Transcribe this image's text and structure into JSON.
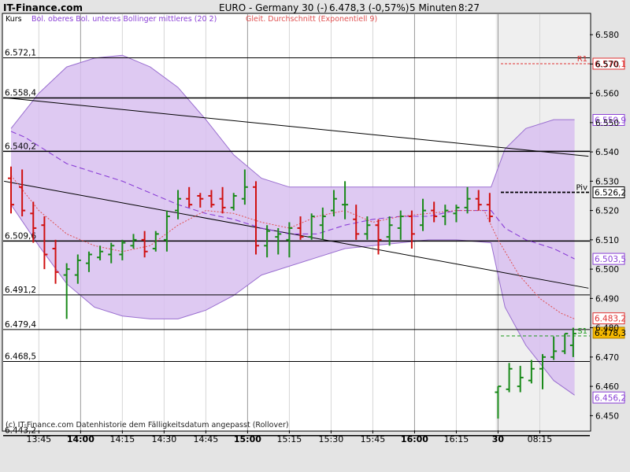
{
  "header": {
    "brand": "IT-Finance.com",
    "instrument": "EURO - Germany 30 (-)",
    "quote": "6.478,3 (-0,57%)",
    "interval": "5 Minuten",
    "time": "8:27"
  },
  "legend": {
    "kurs": "Kurs",
    "bollinger": "Bol. oberes Bol. unteres Bollinger mittleres (20 2)",
    "ema": "Gleit. Durchschnitt (Exponentiell 9)"
  },
  "footer_note": "(c) IT-Finance.com Datenhistorie dem Fälligkeitsdatum angepasst (Rollover)",
  "colors": {
    "band_fill": "#d8bff0",
    "band_edge": "#9a6fd0",
    "middle": "#8a3fd6",
    "ema": "#e05050",
    "up": "#1a8a1a",
    "down": "#d01010",
    "bg": "#ffffff",
    "future_bg": "#f0f0f0",
    "last_price_box": "#f5b800"
  },
  "chart_data": {
    "type": "candlestick",
    "y_min": 6.445,
    "y_max": 6.587,
    "y_ticks": [
      "6.580",
      "6.570",
      "6.560",
      "6.550",
      "6.540",
      "6.530",
      "6.520",
      "6.510",
      "6.500",
      "6.490",
      "6.480",
      "6.470",
      "6.460",
      "6.450"
    ],
    "y_tick_values": [
      6.58,
      6.57,
      6.56,
      6.55,
      6.54,
      6.53,
      6.52,
      6.51,
      6.5,
      6.49,
      6.48,
      6.47,
      6.46,
      6.45
    ],
    "time_start": "13:35",
    "time_labels": [
      {
        "label": "13:45",
        "t": 2,
        "bold": false
      },
      {
        "label": "14:00",
        "t": 5,
        "bold": true
      },
      {
        "label": "14:15",
        "t": 8,
        "bold": false
      },
      {
        "label": "14:30",
        "t": 11,
        "bold": false
      },
      {
        "label": "14:45",
        "t": 14,
        "bold": false
      },
      {
        "label": "15:00",
        "t": 17,
        "bold": true
      },
      {
        "label": "15:15",
        "t": 20,
        "bold": false
      },
      {
        "label": "15:30",
        "t": 23,
        "bold": false
      },
      {
        "label": "15:45",
        "t": 26,
        "bold": false
      },
      {
        "label": "16:00",
        "t": 29,
        "bold": true
      },
      {
        "label": "16:15",
        "t": 32,
        "bold": false
      },
      {
        "label": "30",
        "t": 35,
        "bold": true
      },
      {
        "label": "08:15",
        "t": 38,
        "bold": false
      }
    ],
    "session_break_t": 34.5,
    "hlines": [
      {
        "label": "6.572,1",
        "value": 6.5721,
        "width": 1
      },
      {
        "label": "6.558,4",
        "value": 6.5584,
        "width": 1.5
      },
      {
        "label": "6.540,2",
        "value": 6.5402,
        "width": 1.5
      },
      {
        "label": "6.509,6",
        "value": 6.5096,
        "width": 1.5
      },
      {
        "label": "6.491,2",
        "value": 6.4912,
        "width": 1
      },
      {
        "label": "6.479,4",
        "value": 6.4794,
        "width": 1
      },
      {
        "label": "6.468,5",
        "value": 6.4685,
        "width": 1
      },
      {
        "label": "6.443,2",
        "value": 6.4432,
        "width": 1.5
      }
    ],
    "levels": [
      {
        "name": "R1",
        "value": 6.5701,
        "label": "6.570,1",
        "style": "red-dash"
      },
      {
        "name": "",
        "value": 6.5509,
        "label": "6.550,9",
        "style": "box-purple"
      },
      {
        "name": "Piv",
        "value": 6.5262,
        "label": "6.526,2",
        "style": "black-dash"
      },
      {
        "name": "",
        "value": 6.5035,
        "label": "6.503,5",
        "style": "box-purple"
      },
      {
        "name": "",
        "value": 6.4832,
        "label": "6.483,2",
        "style": "box-red"
      },
      {
        "name": "S1",
        "value": 6.4772,
        "label": "",
        "style": "green-dash"
      },
      {
        "name": "",
        "value": 6.4783,
        "label": "6.478,3",
        "style": "box-last"
      },
      {
        "name": "",
        "value": 6.4562,
        "label": "6.456,2",
        "style": "box-purple"
      }
    ],
    "trendlines": [
      {
        "from": [
          -0.5,
          6.5585
        ],
        "to": [
          41.5,
          6.5385
        ]
      },
      {
        "from": [
          -0.5,
          6.53
        ],
        "to": [
          41.5,
          6.4935
        ]
      }
    ],
    "bars": [
      {
        "t": 0,
        "open": 6.531,
        "high": 6.535,
        "low": 6.519,
        "close": 6.522
      },
      {
        "t": 0.8,
        "open": 6.528,
        "high": 6.534,
        "low": 6.518,
        "close": 6.52
      },
      {
        "t": 1.6,
        "open": 6.519,
        "high": 6.523,
        "low": 6.509,
        "close": 6.514
      },
      {
        "t": 2.4,
        "open": 6.515,
        "high": 6.518,
        "low": 6.5,
        "close": 6.505
      },
      {
        "t": 3.2,
        "open": 6.507,
        "high": 6.51,
        "low": 6.495,
        "close": 6.499
      },
      {
        "t": 4,
        "open": 6.498,
        "high": 6.502,
        "low": 6.483,
        "close": 6.5
      },
      {
        "t": 4.8,
        "open": 6.498,
        "high": 6.505,
        "low": 6.495,
        "close": 6.503
      },
      {
        "t": 5.6,
        "open": 6.502,
        "high": 6.506,
        "low": 6.499,
        "close": 6.505
      },
      {
        "t": 6.4,
        "open": 6.504,
        "high": 6.508,
        "low": 6.503,
        "close": 6.506
      },
      {
        "t": 7.2,
        "open": 6.505,
        "high": 6.509,
        "low": 6.502,
        "close": 6.508
      },
      {
        "t": 8,
        "open": 6.505,
        "high": 6.51,
        "low": 6.503,
        "close": 6.509
      },
      {
        "t": 8.8,
        "open": 6.508,
        "high": 6.512,
        "low": 6.507,
        "close": 6.51
      },
      {
        "t": 9.6,
        "open": 6.51,
        "high": 6.513,
        "low": 6.504,
        "close": 6.506
      },
      {
        "t": 10.4,
        "open": 6.507,
        "high": 6.513,
        "low": 6.506,
        "close": 6.512
      },
      {
        "t": 11.2,
        "open": 6.51,
        "high": 6.52,
        "low": 6.506,
        "close": 6.518
      },
      {
        "t": 12,
        "open": 6.52,
        "high": 6.527,
        "low": 6.517,
        "close": 6.524
      },
      {
        "t": 12.8,
        "open": 6.524,
        "high": 6.528,
        "low": 6.521,
        "close": 6.522
      },
      {
        "t": 13.6,
        "open": 6.525,
        "high": 6.526,
        "low": 6.521,
        "close": 6.524
      },
      {
        "t": 14.4,
        "open": 6.525,
        "high": 6.527,
        "low": 6.521,
        "close": 6.522
      },
      {
        "t": 15.2,
        "open": 6.524,
        "high": 6.528,
        "low": 6.519,
        "close": 6.521
      },
      {
        "t": 16,
        "open": 6.521,
        "high": 6.526,
        "low": 6.52,
        "close": 6.525
      },
      {
        "t": 16.8,
        "open": 6.524,
        "high": 6.534,
        "low": 6.522,
        "close": 6.528
      },
      {
        "t": 17.6,
        "open": 6.528,
        "high": 6.53,
        "low": 6.505,
        "close": 6.508
      },
      {
        "t": 18.4,
        "open": 6.508,
        "high": 6.515,
        "low": 6.504,
        "close": 6.513
      },
      {
        "t": 19.2,
        "open": 6.511,
        "high": 6.514,
        "low": 6.505,
        "close": 6.512
      },
      {
        "t": 20,
        "open": 6.51,
        "high": 6.516,
        "low": 6.504,
        "close": 6.514
      },
      {
        "t": 20.8,
        "open": 6.514,
        "high": 6.518,
        "low": 6.51,
        "close": 6.511
      },
      {
        "t": 21.6,
        "open": 6.511,
        "high": 6.519,
        "low": 6.51,
        "close": 6.518
      },
      {
        "t": 22.4,
        "open": 6.515,
        "high": 6.521,
        "low": 6.51,
        "close": 6.518
      },
      {
        "t": 23.2,
        "open": 6.52,
        "high": 6.527,
        "low": 6.518,
        "close": 6.524
      },
      {
        "t": 24,
        "open": 6.522,
        "high": 6.53,
        "low": 6.517,
        "close": 6.522
      },
      {
        "t": 24.8,
        "open": 6.517,
        "high": 6.522,
        "low": 6.51,
        "close": 6.512
      },
      {
        "t": 25.6,
        "open": 6.512,
        "high": 6.518,
        "low": 6.51,
        "close": 6.515
      },
      {
        "t": 26.4,
        "open": 6.515,
        "high": 6.517,
        "low": 6.505,
        "close": 6.51
      },
      {
        "t": 27.2,
        "open": 6.511,
        "high": 6.518,
        "low": 6.508,
        "close": 6.515
      },
      {
        "t": 28,
        "open": 6.514,
        "high": 6.52,
        "low": 6.51,
        "close": 6.518
      },
      {
        "t": 28.8,
        "open": 6.518,
        "high": 6.52,
        "low": 6.507,
        "close": 6.512
      },
      {
        "t": 29.6,
        "open": 6.515,
        "high": 6.524,
        "low": 6.513,
        "close": 6.52
      },
      {
        "t": 30.4,
        "open": 6.52,
        "high": 6.523,
        "low": 6.516,
        "close": 6.518
      },
      {
        "t": 31.2,
        "open": 6.518,
        "high": 6.522,
        "low": 6.515,
        "close": 6.52
      },
      {
        "t": 32,
        "open": 6.519,
        "high": 6.522,
        "low": 6.516,
        "close": 6.521
      },
      {
        "t": 32.8,
        "open": 6.521,
        "high": 6.528,
        "low": 6.519,
        "close": 6.524
      },
      {
        "t": 33.6,
        "open": 6.524,
        "high": 6.527,
        "low": 6.52,
        "close": 6.522
      },
      {
        "t": 34.4,
        "open": 6.522,
        "high": 6.526,
        "low": 6.516,
        "close": 6.518
      },
      {
        "t": 35,
        "open": 6.458,
        "high": 6.46,
        "low": 6.449,
        "close": 6.46
      },
      {
        "t": 35.8,
        "open": 6.459,
        "high": 6.468,
        "low": 6.458,
        "close": 6.466
      },
      {
        "t": 36.6,
        "open": 6.46,
        "high": 6.467,
        "low": 6.458,
        "close": 6.463
      },
      {
        "t": 37.4,
        "open": 6.462,
        "high": 6.469,
        "low": 6.461,
        "close": 6.466
      },
      {
        "t": 38.2,
        "open": 6.466,
        "high": 6.471,
        "low": 6.459,
        "close": 6.47
      },
      {
        "t": 39,
        "open": 6.47,
        "high": 6.477,
        "low": 6.469,
        "close": 6.472
      },
      {
        "t": 39.8,
        "open": 6.472,
        "high": 6.478,
        "low": 6.471,
        "close": 6.478
      },
      {
        "t": 40.4,
        "open": 6.474,
        "high": 6.48,
        "low": 6.47,
        "close": 6.478
      }
    ],
    "bollinger": {
      "t": [
        0,
        1,
        2,
        4,
        6,
        8,
        10,
        12,
        14,
        16,
        18,
        20,
        22,
        24,
        26,
        28,
        30,
        32,
        34.5,
        35.5,
        37,
        39,
        40.5
      ],
      "upper": [
        6.548,
        6.554,
        6.56,
        6.569,
        6.572,
        6.573,
        6.569,
        6.562,
        6.551,
        6.539,
        6.531,
        6.528,
        6.528,
        6.528,
        6.528,
        6.528,
        6.528,
        6.528,
        6.528,
        6.541,
        6.548,
        6.551,
        6.551
      ],
      "lower": [
        6.522,
        6.515,
        6.508,
        6.495,
        6.487,
        6.484,
        6.483,
        6.483,
        6.486,
        6.491,
        6.498,
        6.501,
        6.504,
        6.507,
        6.508,
        6.509,
        6.51,
        6.51,
        6.509,
        6.487,
        6.474,
        6.462,
        6.457
      ],
      "middle": [
        6.547,
        6.545,
        6.542,
        6.536,
        6.533,
        6.53,
        6.526,
        6.522,
        6.519,
        6.517,
        6.514,
        6.512,
        6.512,
        6.515,
        6.517,
        6.518,
        6.518,
        6.52,
        6.52,
        6.514,
        6.51,
        6.507,
        6.5035
      ]
    },
    "ema": {
      "t": [
        0,
        2,
        4,
        6,
        8,
        10,
        12,
        14,
        16,
        18,
        20,
        22,
        24,
        26,
        28,
        30,
        32,
        34,
        35,
        36.5,
        38,
        39.5,
        40.5
      ],
      "values": [
        6.532,
        6.52,
        6.512,
        6.508,
        6.506,
        6.508,
        6.515,
        6.52,
        6.519,
        6.516,
        6.514,
        6.518,
        6.52,
        6.516,
        6.518,
        6.519,
        6.52,
        6.52,
        6.51,
        6.498,
        6.49,
        6.485,
        6.483
      ]
    }
  }
}
